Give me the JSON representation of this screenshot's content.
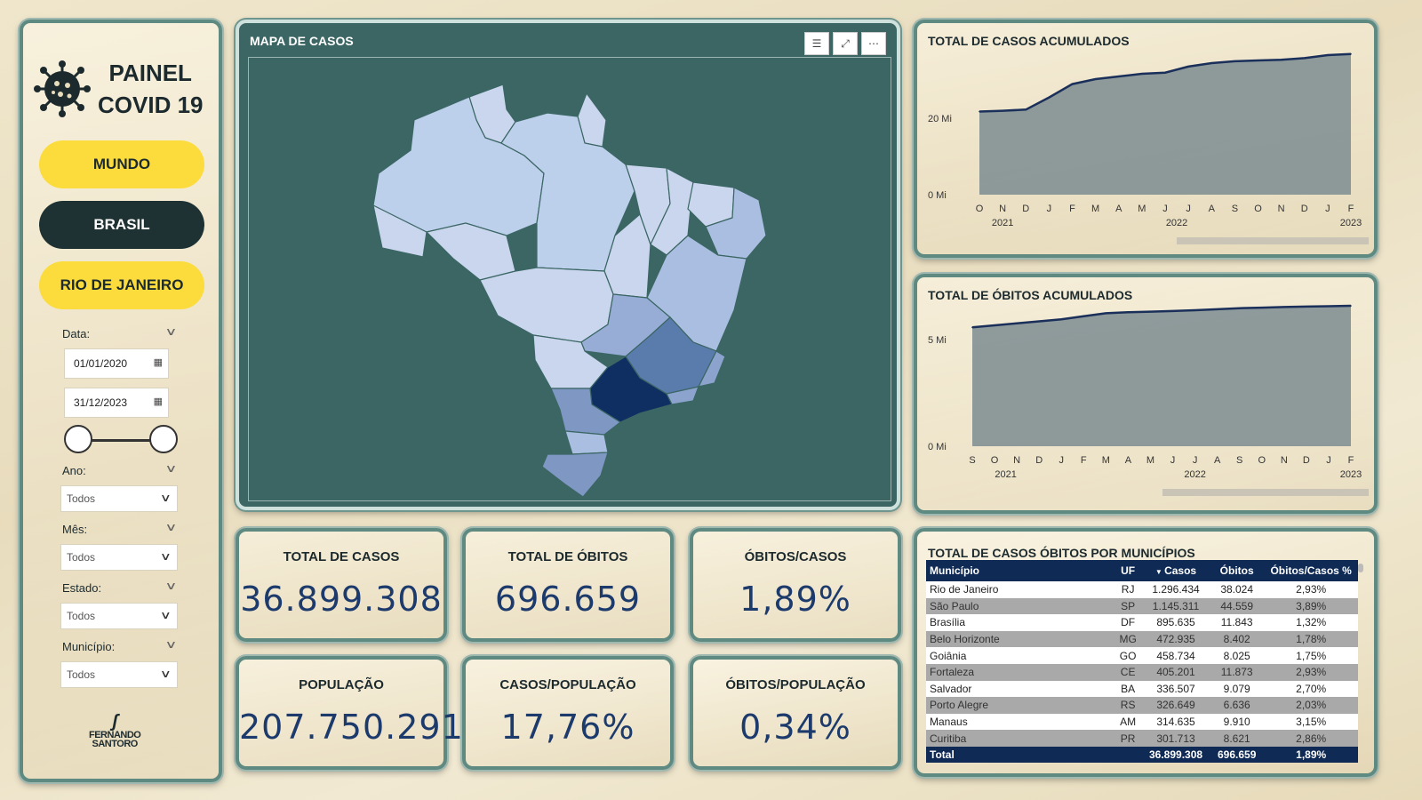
{
  "sidebar": {
    "title_line1": "PAINEL",
    "title_line2": "COVID 19",
    "buttons": {
      "mundo": "MUNDO",
      "brasil": "BRASIL",
      "rio": "RIO DE JANEIRO"
    },
    "data_label": "Data:",
    "date_start": "01/01/2020",
    "date_end": "31/12/2023",
    "ano_label": "Ano:",
    "mes_label": "Mês:",
    "estado_label": "Estado:",
    "municipio_label": "Município:",
    "select_value": "Todos",
    "brand_line1": "FERNANDO",
    "brand_line2": "SANTORO"
  },
  "map": {
    "title": "MAPA DE CASOS",
    "tool_icons": [
      "filter-icon",
      "focus-mode-icon",
      "more-options-icon"
    ]
  },
  "cases_chart": {
    "title": "TOTAL DE CASOS ACUMULADOS",
    "chart_data": {
      "type": "area",
      "x_ticks": [
        "O",
        "N",
        "D",
        "J",
        "F",
        "M",
        "A",
        "M",
        "J",
        "J",
        "A",
        "S",
        "O",
        "N",
        "D",
        "J",
        "F"
      ],
      "year_labels": [
        "2021",
        "2022",
        "2023"
      ],
      "y_ticks": [
        "20 Mi",
        "0 Mi"
      ],
      "values_mi": [
        21.8,
        22.0,
        22.3,
        25.5,
        29.0,
        30.3,
        31.0,
        31.7,
        32.0,
        33.6,
        34.5,
        35.0,
        35.2,
        35.4,
        35.8,
        36.6,
        36.9
      ],
      "ylim": [
        0,
        38
      ]
    }
  },
  "deaths_chart": {
    "title": "TOTAL DE ÓBITOS ACUMULADOS",
    "chart_data": {
      "type": "area",
      "x_ticks": [
        "S",
        "O",
        "N",
        "D",
        "J",
        "F",
        "M",
        "A",
        "M",
        "J",
        "J",
        "A",
        "S",
        "O",
        "N",
        "D",
        "J",
        "F"
      ],
      "year_labels": [
        "2021",
        "2022",
        "2023"
      ],
      "y_ticks": [
        "5 Mi",
        "0 Mi"
      ],
      "values_mi": [
        0.59,
        0.6,
        0.61,
        0.62,
        0.63,
        0.645,
        0.66,
        0.665,
        0.668,
        0.671,
        0.675,
        0.68,
        0.685,
        0.688,
        0.691,
        0.693,
        0.695,
        0.697
      ],
      "ylim": [
        0,
        0.75
      ]
    }
  },
  "kpis": {
    "total_casos": {
      "title": "TOTAL DE CASOS",
      "value": "36.899.308"
    },
    "total_obitos": {
      "title": "TOTAL DE ÓBITOS",
      "value": "696.659"
    },
    "obitos_casos": {
      "title": "ÓBITOS/CASOS",
      "value": "1,89%"
    },
    "populacao": {
      "title": "POPULAÇÃO",
      "value": "207.750.291"
    },
    "casos_populacao": {
      "title": "CASOS/POPULAÇÃO",
      "value": "17,76%"
    },
    "obitos_populacao": {
      "title": "ÓBITOS/POPULAÇÃO",
      "value": "0,34%"
    }
  },
  "table": {
    "title": "TOTAL DE CASOS ÓBITOS POR MUNICÍPIOS",
    "columns": [
      "Município",
      "UF",
      "Casos",
      "Óbitos",
      "Óbitos/Casos %"
    ],
    "rows": [
      [
        "Rio de Janeiro",
        "RJ",
        "1.296.434",
        "38.024",
        "2,93%"
      ],
      [
        "São Paulo",
        "SP",
        "1.145.311",
        "44.559",
        "3,89%"
      ],
      [
        "Brasília",
        "DF",
        "895.635",
        "11.843",
        "1,32%"
      ],
      [
        "Belo Horizonte",
        "MG",
        "472.935",
        "8.402",
        "1,78%"
      ],
      [
        "Goiânia",
        "GO",
        "458.734",
        "8.025",
        "1,75%"
      ],
      [
        "Fortaleza",
        "CE",
        "405.201",
        "11.873",
        "2,93%"
      ],
      [
        "Salvador",
        "BA",
        "336.507",
        "9.079",
        "2,70%"
      ],
      [
        "Porto Alegre",
        "RS",
        "326.649",
        "6.636",
        "2,03%"
      ],
      [
        "Manaus",
        "AM",
        "314.635",
        "9.910",
        "3,15%"
      ],
      [
        "Curitiba",
        "PR",
        "301.713",
        "8.621",
        "2,86%"
      ]
    ],
    "total": [
      "Total",
      "",
      "36.899.308",
      "696.659",
      "1,89%"
    ]
  },
  "colors": {
    "accent_yellow": "#fbdc3c",
    "dark_button": "#1f3233",
    "map_bg": "#3b6664",
    "kpi_value": "#1c3a6b",
    "table_header": "#0e2a55"
  }
}
